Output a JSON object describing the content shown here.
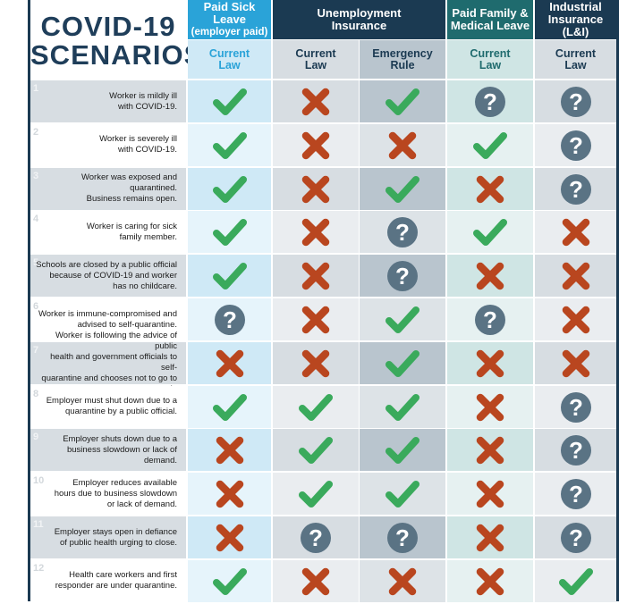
{
  "title": {
    "line1": "COVID-19",
    "line2": "SCENARIOS"
  },
  "columns": [
    {
      "group": [
        "Paid Sick Leave",
        "(employer paid)"
      ],
      "sub": [
        "Current",
        "Law"
      ]
    },
    {
      "group": [
        "Unemployment",
        "Insurance"
      ],
      "sub": [
        "Current",
        "Law"
      ]
    },
    {
      "group": [
        "Unemployment",
        "Insurance"
      ],
      "sub": [
        "Emergency",
        "Rule"
      ]
    },
    {
      "group": [
        "Paid Family &",
        "Medical Leave"
      ],
      "sub": [
        "Current",
        "Law"
      ]
    },
    {
      "group": [
        "Industrial",
        "Insurance (L&I)"
      ],
      "sub": [
        "Current",
        "Law"
      ]
    }
  ],
  "headers": {
    "psl": [
      "Paid Sick Leave",
      "(employer paid)"
    ],
    "ui": [
      "Unemployment",
      "Insurance"
    ],
    "pfml": [
      "Paid Family &",
      "Medical Leave"
    ],
    "li": [
      "Industrial",
      "Insurance (L&I)"
    ],
    "sub_psl": [
      "Current",
      "Law"
    ],
    "sub_ui_current": [
      "Current",
      "Law"
    ],
    "sub_ui_emergency": [
      "Emergency",
      "Rule"
    ],
    "sub_pfml": [
      "Current",
      "Law"
    ],
    "sub_li": [
      "Current",
      "Law"
    ]
  },
  "colors": {
    "navy": "#1b3a52",
    "psl_header": "#2aa3d8",
    "pfml_header": "#1f6b6e",
    "check": "#3aaa5c",
    "cross": "#b9461f",
    "question": "#5a7384"
  },
  "legend_icons": {
    "check": "check-icon",
    "cross": "cross-icon",
    "question": "question-icon"
  },
  "rows": [
    {
      "num": "1",
      "text": [
        "Worker is mildly ill",
        "with COVID-19."
      ],
      "vals": [
        "check",
        "cross",
        "check",
        "question",
        "question"
      ]
    },
    {
      "num": "2",
      "text": [
        "Worker is severely ill",
        "with COVID-19."
      ],
      "vals": [
        "check",
        "cross",
        "cross",
        "check",
        "question"
      ]
    },
    {
      "num": "3",
      "text": [
        "Worker was exposed and quarantined.",
        "Business remains open."
      ],
      "vals": [
        "check",
        "cross",
        "check",
        "cross",
        "question"
      ]
    },
    {
      "num": "4",
      "text": [
        "Worker is caring for sick",
        "family member."
      ],
      "vals": [
        "check",
        "cross",
        "question",
        "check",
        "cross"
      ]
    },
    {
      "num": "5",
      "text": [
        "Schools are closed by a public official",
        "because of COVID-19 and worker",
        "has no childcare."
      ],
      "vals": [
        "check",
        "cross",
        "question",
        "cross",
        "cross"
      ]
    },
    {
      "num": "6",
      "text": [
        "Worker is immune-compromised and",
        "advised to self-quarantine."
      ],
      "vals": [
        "question",
        "cross",
        "check",
        "question",
        "cross"
      ]
    },
    {
      "num": "7",
      "text": [
        "Worker is following the advice of public",
        "health and government officials to self-",
        "quarantine and chooses not to go to work."
      ],
      "vals": [
        "cross",
        "cross",
        "check",
        "cross",
        "cross"
      ]
    },
    {
      "num": "8",
      "text": [
        "Employer must shut down due to a",
        "quarantine by a public official."
      ],
      "vals": [
        "check",
        "check",
        "check",
        "cross",
        "question"
      ]
    },
    {
      "num": "9",
      "text": [
        "Employer shuts down due to a",
        "business slowdown or lack of demand."
      ],
      "vals": [
        "cross",
        "check",
        "check",
        "cross",
        "question"
      ]
    },
    {
      "num": "10",
      "text": [
        "Employer reduces available",
        "hours due to business slowdown",
        "or lack of demand."
      ],
      "vals": [
        "cross",
        "check",
        "check",
        "cross",
        "question"
      ]
    },
    {
      "num": "11",
      "text": [
        "Employer stays open in defiance",
        "of public health urging to close."
      ],
      "vals": [
        "cross",
        "question",
        "question",
        "cross",
        "question"
      ]
    },
    {
      "num": "12",
      "text": [
        "Health care workers and first",
        "responder are under quarantine."
      ],
      "vals": [
        "check",
        "cross",
        "cross",
        "cross",
        "check"
      ]
    }
  ]
}
